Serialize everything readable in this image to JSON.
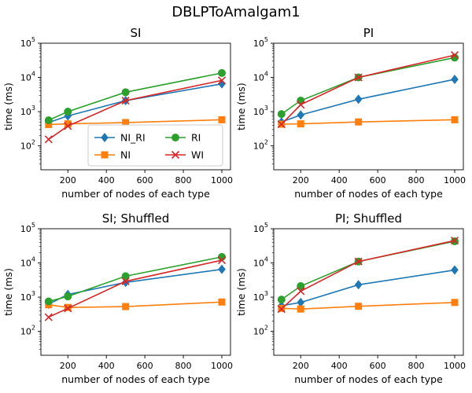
{
  "figure": {
    "title": "DBLPToAmalgam1"
  },
  "colors": {
    "NI_RI": "#1f77b4",
    "NI": "#ff7f0e",
    "RI": "#2ca02c",
    "WI": "#d62728"
  },
  "legend": {
    "placement": "lower-right",
    "subplot": 0,
    "entries": [
      {
        "name": "NI_RI",
        "marker": "diamond"
      },
      {
        "name": "NI",
        "marker": "square"
      },
      {
        "name": "RI",
        "marker": "circle"
      },
      {
        "name": "WI",
        "marker": "x"
      }
    ]
  },
  "chart_data": [
    {
      "type": "line",
      "title": "SI",
      "xlabel": "number of nodes of each type",
      "ylabel": "time (ms)",
      "yscale": "log",
      "xlim": [
        60,
        1045
      ],
      "ylim": [
        20,
        100000
      ],
      "xticks": [
        200,
        400,
        600,
        800,
        1000
      ],
      "yticks": [
        100,
        1000,
        10000,
        100000
      ],
      "x": [
        100,
        200,
        500,
        1000
      ],
      "series": [
        {
          "name": "NI_RI",
          "values": [
            480,
            750,
            2100,
            6500
          ]
        },
        {
          "name": "NI",
          "values": [
            420,
            440,
            480,
            580
          ]
        },
        {
          "name": "RI",
          "values": [
            560,
            1000,
            3700,
            13500
          ]
        },
        {
          "name": "WI",
          "values": [
            155,
            380,
            2100,
            8200
          ]
        }
      ]
    },
    {
      "type": "line",
      "title": "PI",
      "xlabel": "number of nodes of each type",
      "ylabel": "time (ms)",
      "yscale": "log",
      "xlim": [
        60,
        1045
      ],
      "ylim": [
        20,
        100000
      ],
      "xticks": [
        200,
        400,
        600,
        800,
        1000
      ],
      "yticks": [
        100,
        1000,
        10000,
        100000
      ],
      "x": [
        100,
        200,
        500,
        1000
      ],
      "series": [
        {
          "name": "NI_RI",
          "values": [
            500,
            800,
            2300,
            8800
          ]
        },
        {
          "name": "NI",
          "values": [
            430,
            440,
            500,
            580
          ]
        },
        {
          "name": "RI",
          "values": [
            850,
            2100,
            10000,
            38000
          ]
        },
        {
          "name": "WI",
          "values": [
            430,
            1600,
            10000,
            45000
          ]
        }
      ]
    },
    {
      "type": "line",
      "title": "SI; Shuffled",
      "xlabel": "number of nodes of each type",
      "ylabel": "time (ms)",
      "yscale": "log",
      "xlim": [
        60,
        1045
      ],
      "ylim": [
        20,
        100000
      ],
      "xticks": [
        200,
        400,
        600,
        800,
        1000
      ],
      "yticks": [
        100,
        1000,
        10000,
        100000
      ],
      "x": [
        100,
        200,
        500,
        1000
      ],
      "series": [
        {
          "name": "NI_RI",
          "values": [
            620,
            1200,
            2700,
            6500
          ]
        },
        {
          "name": "NI",
          "values": [
            600,
            500,
            530,
            720
          ]
        },
        {
          "name": "RI",
          "values": [
            750,
            1050,
            4100,
            15000
          ]
        },
        {
          "name": "WI",
          "values": [
            260,
            470,
            2900,
            12000
          ]
        }
      ]
    },
    {
      "type": "line",
      "title": "PI; Shuffled",
      "xlabel": "number of nodes of each type",
      "ylabel": "time (ms)",
      "yscale": "log",
      "xlim": [
        60,
        1045
      ],
      "ylim": [
        20,
        100000
      ],
      "xticks": [
        200,
        400,
        600,
        800,
        1000
      ],
      "yticks": [
        100,
        1000,
        10000,
        100000
      ],
      "x": [
        100,
        200,
        500,
        1000
      ],
      "series": [
        {
          "name": "NI_RI",
          "values": [
            560,
            700,
            2300,
            6200
          ]
        },
        {
          "name": "NI",
          "values": [
            470,
            450,
            540,
            700
          ]
        },
        {
          "name": "RI",
          "values": [
            850,
            2100,
            11000,
            43000
          ]
        },
        {
          "name": "WI",
          "values": [
            450,
            1500,
            11000,
            45000
          ]
        }
      ]
    }
  ]
}
